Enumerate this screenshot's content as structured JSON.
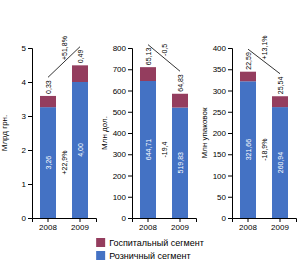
{
  "chart_data": [
    {
      "type": "bar",
      "stacked": true,
      "data_labels": true,
      "grid": false,
      "legend": "bottom",
      "ylabel": "Млрд грн.",
      "categories": [
        "2008",
        "2009"
      ],
      "series": [
        {
          "name": "Розничный сегмент",
          "color": "#4472c4",
          "values": [
            3.26,
            4.0
          ],
          "value_labels": [
            "3,26",
            "4,00"
          ]
        },
        {
          "name": "Госпитальный сегмент",
          "color": "#943d5e",
          "values": [
            0.33,
            0.49
          ],
          "value_labels": [
            "0,33",
            "0,49"
          ]
        }
      ],
      "ylim": [
        0,
        5
      ],
      "yticks": [
        0,
        1,
        2,
        3,
        4,
        5
      ],
      "annotations": [
        {
          "text": "+22,9%"
        },
        {
          "text": "+51,8%"
        }
      ]
    },
    {
      "type": "bar",
      "stacked": true,
      "data_labels": true,
      "grid": false,
      "ylabel": "Млн дол.",
      "categories": [
        "2008",
        "2009"
      ],
      "series": [
        {
          "color": "#4472c4",
          "values": [
            644.71,
            519.83
          ],
          "value_labels": [
            "644,71",
            "519,83"
          ]
        },
        {
          "color": "#943d5e",
          "values": [
            65.13,
            64.83
          ],
          "value_labels": [
            "65,13",
            "64,83"
          ]
        }
      ],
      "ylim": [
        0,
        800
      ],
      "yticks": [
        0,
        100,
        200,
        300,
        400,
        500,
        600,
        700,
        800
      ],
      "annotations": [
        {
          "text": "-19,4"
        },
        {
          "text": "-0,5"
        }
      ]
    },
    {
      "type": "bar",
      "stacked": true,
      "data_labels": true,
      "grid": false,
      "ylabel": "Млн упаковок",
      "categories": [
        "2008",
        "2009"
      ],
      "series": [
        {
          "color": "#4472c4",
          "values": [
            321.66,
            260.94
          ],
          "value_labels": [
            "321,66",
            "260,94"
          ]
        },
        {
          "color": "#943d5e",
          "values": [
            22.59,
            25.54
          ],
          "value_labels": [
            "22,59",
            "25,54"
          ]
        }
      ],
      "ylim": [
        0,
        400
      ],
      "yticks": [
        0,
        50,
        100,
        150,
        200,
        250,
        300,
        350,
        400
      ],
      "annotations": [
        {
          "text": "-18,9%"
        },
        {
          "text": "+13,1%"
        }
      ]
    }
  ]
}
